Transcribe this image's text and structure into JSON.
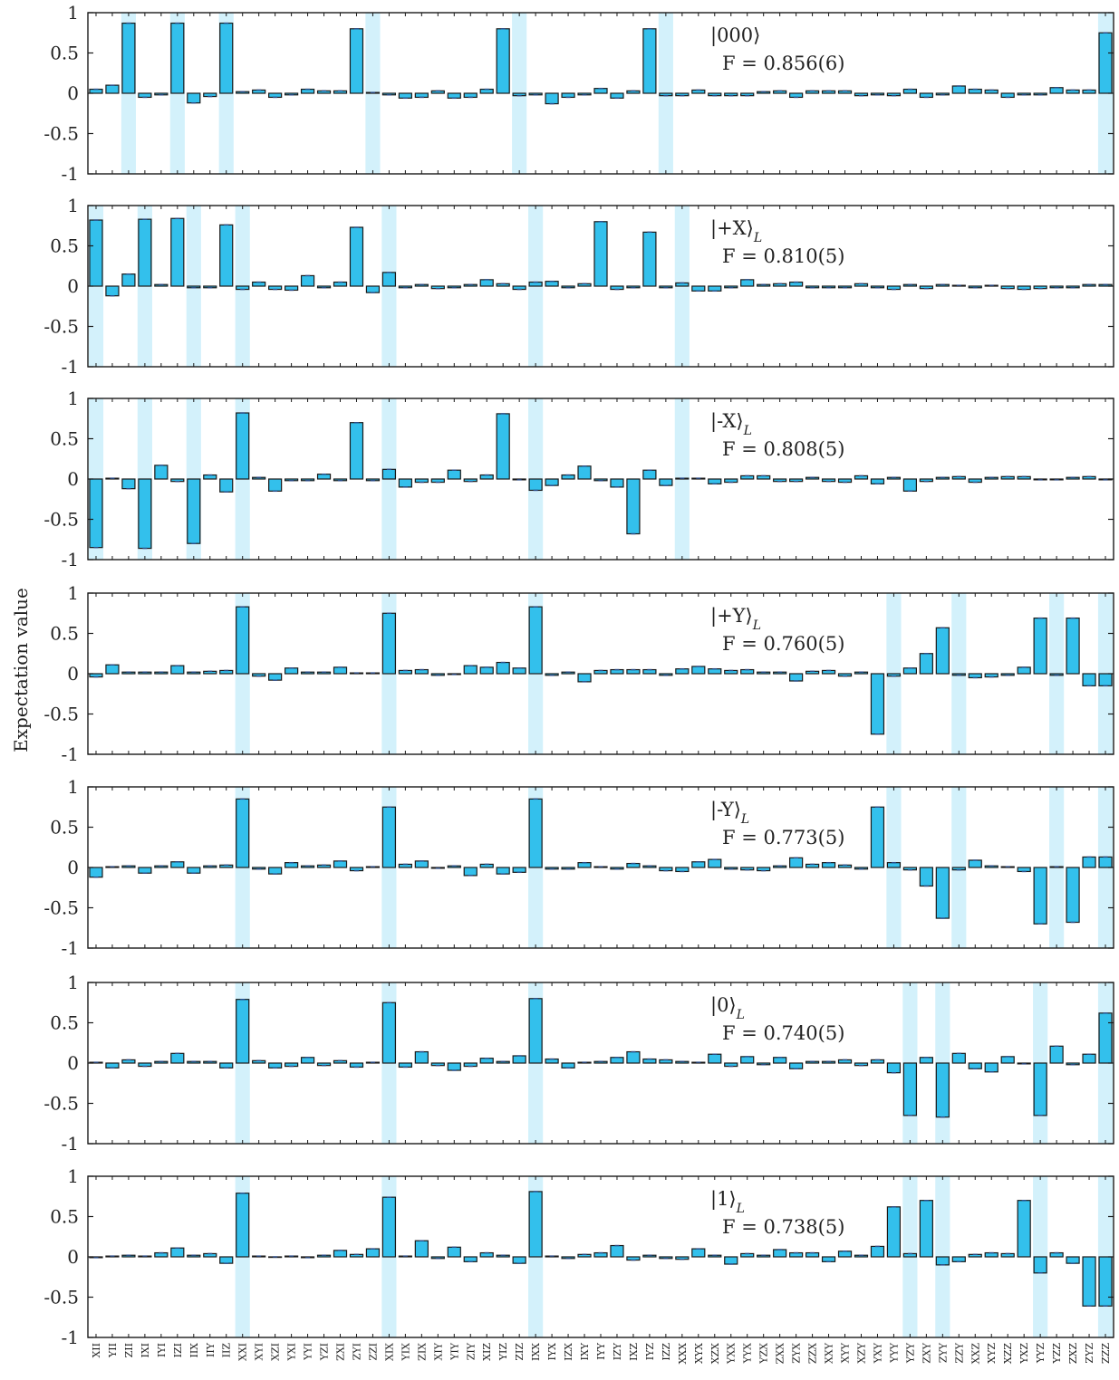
{
  "chart_data": {
    "type": "bar",
    "ylabel": "Expectation value",
    "ylim": [
      -1,
      1
    ],
    "yticks": [
      "1",
      "0.5",
      "0",
      "-0.5",
      "-1"
    ],
    "colors": {
      "bar": "#33c0ec",
      "highlight": "#d3f1fb",
      "edge": "#1a1a1a",
      "error": "#2a4b88"
    },
    "categories": [
      "XII",
      "YII",
      "ZII",
      "IXI",
      "IYI",
      "IZI",
      "IIX",
      "IIY",
      "IIZ",
      "XXI",
      "XYI",
      "XZI",
      "YXI",
      "YYI",
      "YZI",
      "ZXI",
      "ZYI",
      "ZZI",
      "XIX",
      "YIX",
      "ZIX",
      "XIY",
      "YIY",
      "ZIY",
      "XIZ",
      "YIZ",
      "ZIZ",
      "IXX",
      "IYX",
      "IZX",
      "IXY",
      "IYY",
      "IZY",
      "IXZ",
      "IYZ",
      "IZZ",
      "XXX",
      "XYX",
      "XZX",
      "YXX",
      "YYX",
      "YZX",
      "ZXX",
      "ZYX",
      "ZZX",
      "XXY",
      "XYY",
      "XZY",
      "YXY",
      "YYY",
      "YZY",
      "ZXY",
      "ZYY",
      "ZZY",
      "XXZ",
      "XYZ",
      "XZZ",
      "YXZ",
      "YYZ",
      "YZZ",
      "ZXZ",
      "ZYZ",
      "ZZZ"
    ],
    "panels": [
      {
        "state": "|000⟩",
        "state_sub": "",
        "fidelity": "F = 0.856(6)",
        "highlights": [
          2,
          5,
          8,
          17,
          26,
          35,
          62
        ],
        "values": [
          0.05,
          0.1,
          0.87,
          -0.05,
          -0.02,
          0.87,
          -0.12,
          -0.04,
          0.87,
          0.02,
          0.04,
          -0.05,
          -0.02,
          0.05,
          0.03,
          0.03,
          0.8,
          0.01,
          -0.02,
          -0.06,
          -0.05,
          0.03,
          -0.06,
          -0.05,
          0.05,
          0.8,
          -0.03,
          -0.02,
          -0.13,
          -0.05,
          -0.02,
          0.06,
          -0.06,
          0.03,
          0.8,
          -0.03,
          -0.03,
          0.04,
          -0.03,
          -0.03,
          -0.03,
          0.02,
          0.03,
          -0.05,
          0.03,
          0.03,
          0.03,
          -0.03,
          -0.02,
          -0.03,
          0.05,
          -0.05,
          -0.02,
          0.09,
          0.05,
          0.04,
          -0.05,
          -0.02,
          -0.02,
          0.07,
          0.04,
          0.04,
          0.75
        ]
      },
      {
        "state": "|+X⟩",
        "state_sub": "L",
        "fidelity": "F = 0.810(5)",
        "highlights": [
          0,
          3,
          6,
          9,
          18,
          27,
          36
        ],
        "values": [
          0.82,
          -0.12,
          0.15,
          0.83,
          0.02,
          0.84,
          -0.02,
          -0.02,
          0.76,
          -0.04,
          0.05,
          -0.04,
          -0.05,
          0.13,
          -0.02,
          0.05,
          0.73,
          -0.08,
          0.17,
          -0.02,
          0.02,
          -0.03,
          -0.02,
          0.02,
          0.08,
          0.03,
          -0.04,
          0.05,
          0.06,
          -0.02,
          0.03,
          0.8,
          -0.04,
          -0.02,
          0.67,
          -0.02,
          0.04,
          -0.06,
          -0.06,
          -0.02,
          0.08,
          0.02,
          0.03,
          0.05,
          -0.02,
          -0.02,
          -0.02,
          0.03,
          -0.02,
          -0.04,
          0.02,
          -0.03,
          0.02,
          0.01,
          -0.02,
          0.01,
          -0.03,
          -0.04,
          -0.03,
          -0.02,
          -0.02,
          0.02,
          0.02
        ]
      },
      {
        "state": "|-X⟩",
        "state_sub": "L",
        "fidelity": "F = 0.808(5)",
        "highlights": [
          0,
          3,
          6,
          9,
          18,
          27,
          36
        ],
        "values": [
          -0.85,
          0.01,
          -0.12,
          -0.86,
          0.17,
          -0.03,
          -0.8,
          0.05,
          -0.16,
          0.82,
          0.02,
          -0.15,
          -0.02,
          -0.02,
          0.06,
          -0.02,
          0.7,
          -0.02,
          0.12,
          -0.1,
          -0.04,
          -0.04,
          0.11,
          -0.03,
          0.05,
          0.81,
          -0.01,
          -0.14,
          -0.08,
          0.05,
          0.16,
          -0.02,
          -0.1,
          -0.68,
          0.11,
          -0.08,
          0.01,
          0.01,
          -0.06,
          -0.04,
          0.04,
          0.04,
          -0.03,
          -0.03,
          0.02,
          -0.03,
          -0.04,
          0.04,
          -0.06,
          0.02,
          -0.15,
          -0.03,
          0.02,
          0.03,
          -0.04,
          0.02,
          0.03,
          0.03,
          -0.01,
          -0.01,
          0.02,
          0.03,
          -0.01
        ]
      },
      {
        "state": "|+Y⟩",
        "state_sub": "L",
        "fidelity": "F = 0.760(5)",
        "highlights": [
          9,
          18,
          27,
          49,
          53,
          59,
          62
        ],
        "values": [
          -0.04,
          0.11,
          0.02,
          0.02,
          0.02,
          0.1,
          0.02,
          0.03,
          0.04,
          0.83,
          -0.03,
          -0.08,
          0.07,
          0.02,
          0.02,
          0.08,
          0.01,
          0.01,
          0.75,
          0.04,
          0.05,
          -0.02,
          -0.01,
          0.1,
          0.08,
          0.14,
          0.07,
          0.83,
          -0.02,
          0.02,
          -0.1,
          0.04,
          0.05,
          0.05,
          0.05,
          -0.02,
          0.06,
          0.09,
          0.06,
          0.04,
          0.05,
          0.02,
          0.02,
          -0.09,
          0.03,
          0.04,
          -0.03,
          0.02,
          -0.75,
          -0.03,
          0.07,
          0.25,
          0.57,
          -0.02,
          -0.05,
          -0.04,
          -0.02,
          0.08,
          0.69,
          -0.02,
          0.69,
          -0.15,
          -0.15
        ]
      },
      {
        "state": "|-Y⟩",
        "state_sub": "L",
        "fidelity": "F = 0.773(5)",
        "highlights": [
          9,
          18,
          27,
          49,
          53,
          59,
          62
        ],
        "values": [
          -0.12,
          0.01,
          0.02,
          -0.07,
          0.02,
          0.07,
          -0.07,
          0.02,
          0.03,
          0.85,
          -0.02,
          -0.08,
          0.06,
          0.02,
          0.03,
          0.08,
          -0.04,
          0.01,
          0.75,
          0.04,
          0.08,
          -0.01,
          0.02,
          -0.1,
          0.04,
          -0.08,
          -0.06,
          0.85,
          -0.02,
          -0.02,
          0.06,
          0.01,
          -0.02,
          0.05,
          0.02,
          -0.04,
          -0.05,
          0.07,
          0.1,
          -0.02,
          -0.03,
          -0.04,
          0.02,
          0.12,
          0.04,
          0.06,
          0.03,
          -0.02,
          0.75,
          0.06,
          -0.03,
          -0.23,
          -0.63,
          -0.03,
          0.09,
          0.02,
          0.01,
          -0.05,
          -0.7,
          0.01,
          -0.68,
          0.13,
          0.13
        ]
      },
      {
        "state": "|0⟩",
        "state_sub": "L",
        "fidelity": "F = 0.740(5)",
        "highlights": [
          9,
          18,
          27,
          50,
          52,
          58,
          62
        ],
        "values": [
          0.01,
          -0.06,
          0.04,
          -0.04,
          0.02,
          0.12,
          0.02,
          0.02,
          -0.06,
          0.79,
          0.03,
          -0.06,
          -0.04,
          0.07,
          -0.03,
          0.03,
          -0.05,
          0.01,
          0.75,
          -0.05,
          0.14,
          -0.03,
          -0.09,
          -0.04,
          0.06,
          0.02,
          0.09,
          0.8,
          0.05,
          -0.06,
          0.01,
          0.02,
          0.07,
          0.14,
          0.05,
          0.04,
          0.02,
          0.01,
          0.11,
          -0.04,
          0.08,
          -0.02,
          0.07,
          -0.07,
          0.02,
          0.02,
          0.04,
          -0.03,
          0.04,
          -0.12,
          -0.65,
          0.07,
          -0.67,
          0.12,
          -0.07,
          -0.11,
          0.08,
          -0.01,
          -0.65,
          0.21,
          -0.02,
          0.11,
          0.62
        ]
      },
      {
        "state": "|1⟩",
        "state_sub": "L",
        "fidelity": "F = 0.738(5)",
        "highlights": [
          9,
          18,
          27,
          50,
          52,
          58,
          62
        ],
        "values": [
          -0.01,
          0.01,
          0.02,
          0.01,
          0.05,
          0.11,
          0.02,
          0.04,
          -0.08,
          0.79,
          0.01,
          0.0,
          0.01,
          -0.01,
          0.02,
          0.08,
          0.03,
          0.1,
          0.74,
          0.01,
          0.2,
          -0.02,
          0.12,
          -0.06,
          0.05,
          0.02,
          -0.08,
          0.81,
          0.01,
          -0.02,
          0.03,
          0.05,
          0.14,
          -0.04,
          0.02,
          -0.02,
          -0.03,
          0.1,
          0.02,
          -0.09,
          0.04,
          0.02,
          0.09,
          0.05,
          0.05,
          -0.06,
          0.07,
          0.02,
          0.13,
          0.62,
          0.04,
          0.7,
          -0.1,
          -0.06,
          0.03,
          0.05,
          0.04,
          0.7,
          -0.2,
          0.05,
          -0.08,
          -0.61,
          -0.61
        ]
      }
    ]
  }
}
